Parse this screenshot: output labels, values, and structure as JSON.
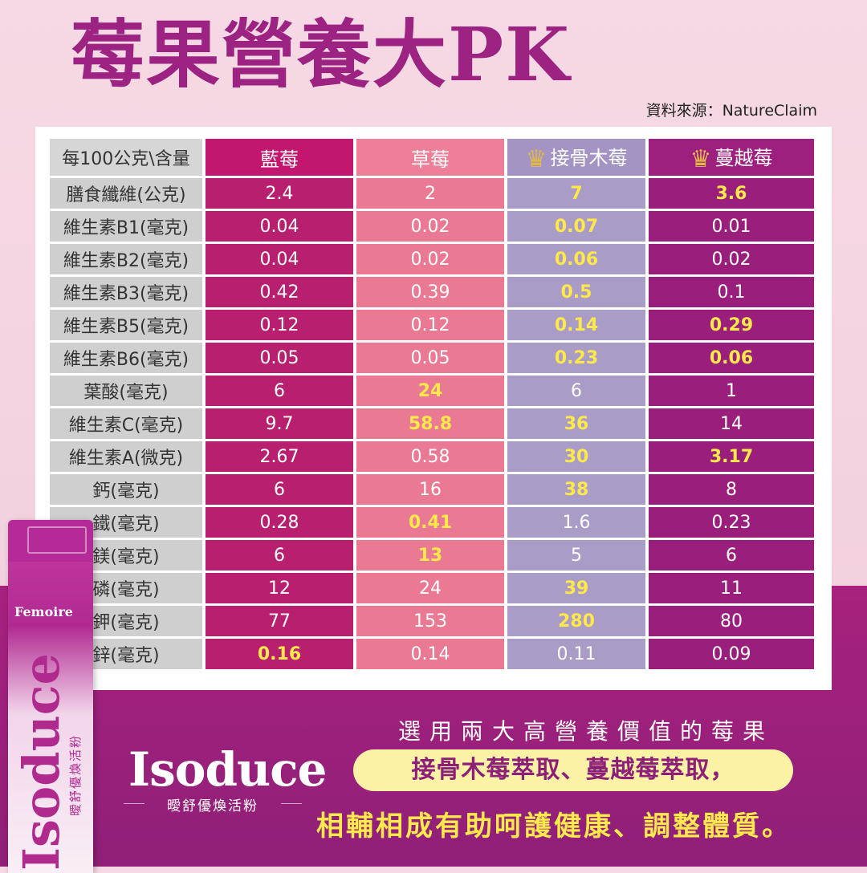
{
  "title": "莓果營養大PK",
  "source": "資料來源：NatureClaim",
  "table": {
    "corner_header": "每100公克\\含量",
    "columns": [
      {
        "label": "藍莓",
        "crown": false
      },
      {
        "label": "草莓",
        "crown": false
      },
      {
        "label": "接骨木莓",
        "crown": true
      },
      {
        "label": "蔓越莓",
        "crown": true
      }
    ],
    "crown_icon": "crown-icon",
    "rows": [
      {
        "label": "膳食纖維(公克)",
        "values": [
          "2.4",
          "2",
          "7",
          "3.6"
        ],
        "highlight": [
          false,
          false,
          true,
          true
        ]
      },
      {
        "label": "維生素B1(毫克)",
        "values": [
          "0.04",
          "0.02",
          "0.07",
          "0.01"
        ],
        "highlight": [
          false,
          false,
          true,
          false
        ]
      },
      {
        "label": "維生素B2(毫克)",
        "values": [
          "0.04",
          "0.02",
          "0.06",
          "0.02"
        ],
        "highlight": [
          false,
          false,
          true,
          false
        ]
      },
      {
        "label": "維生素B3(毫克)",
        "values": [
          "0.42",
          "0.39",
          "0.5",
          "0.1"
        ],
        "highlight": [
          false,
          false,
          true,
          false
        ]
      },
      {
        "label": "維生素B5(毫克)",
        "values": [
          "0.12",
          "0.12",
          "0.14",
          "0.29"
        ],
        "highlight": [
          false,
          false,
          true,
          true
        ]
      },
      {
        "label": "維生素B6(毫克)",
        "values": [
          "0.05",
          "0.05",
          "0.23",
          "0.06"
        ],
        "highlight": [
          false,
          false,
          true,
          true
        ]
      },
      {
        "label": "葉酸(毫克)",
        "values": [
          "6",
          "24",
          "6",
          "1"
        ],
        "highlight": [
          false,
          true,
          false,
          false
        ]
      },
      {
        "label": "維生素C(毫克)",
        "values": [
          "9.7",
          "58.8",
          "36",
          "14"
        ],
        "highlight": [
          false,
          true,
          true,
          false
        ]
      },
      {
        "label": "維生素A(微克)",
        "values": [
          "2.67",
          "0.58",
          "30",
          "3.17"
        ],
        "highlight": [
          false,
          false,
          true,
          true
        ]
      },
      {
        "label": "鈣(毫克)",
        "values": [
          "6",
          "16",
          "38",
          "8"
        ],
        "highlight": [
          false,
          false,
          true,
          false
        ]
      },
      {
        "label": "鐵(毫克)",
        "values": [
          "0.28",
          "0.41",
          "1.6",
          "0.23"
        ],
        "highlight": [
          false,
          true,
          false,
          false
        ]
      },
      {
        "label": "鎂(毫克)",
        "values": [
          "6",
          "13",
          "5",
          "6"
        ],
        "highlight": [
          false,
          true,
          false,
          false
        ]
      },
      {
        "label": "磷(毫克)",
        "values": [
          "12",
          "24",
          "39",
          "11"
        ],
        "highlight": [
          false,
          false,
          true,
          false
        ]
      },
      {
        "label": "鉀(毫克)",
        "values": [
          "77",
          "153",
          "280",
          "80"
        ],
        "highlight": [
          false,
          false,
          true,
          false
        ]
      },
      {
        "label": "鋅(毫克)",
        "values": [
          "0.16",
          "0.14",
          "0.11",
          "0.09"
        ],
        "highlight": [
          true,
          false,
          false,
          false
        ]
      }
    ]
  },
  "product": {
    "sachet_brand": "Femoire",
    "sachet_name": "Isoduce",
    "sachet_sub": "曖舒優煥活粉",
    "logo": "Isoduce",
    "logo_sub": "曖舒優煥活粉"
  },
  "slogan": {
    "line1": "選用兩大高營養價值的莓果",
    "highlight": "接骨木莓萃取、蔓越莓萃取，",
    "line2": "相輔相成有助呵護健康、調整體質。"
  },
  "colors": {
    "title": "#9c2382",
    "blueberry": "#b81f6f",
    "strawberry": "#ea7a94",
    "elderberry": "#a99cc7",
    "cranberry": "#9a1f7c",
    "highlight_text": "#ffe84a",
    "band": "#a8217f"
  }
}
